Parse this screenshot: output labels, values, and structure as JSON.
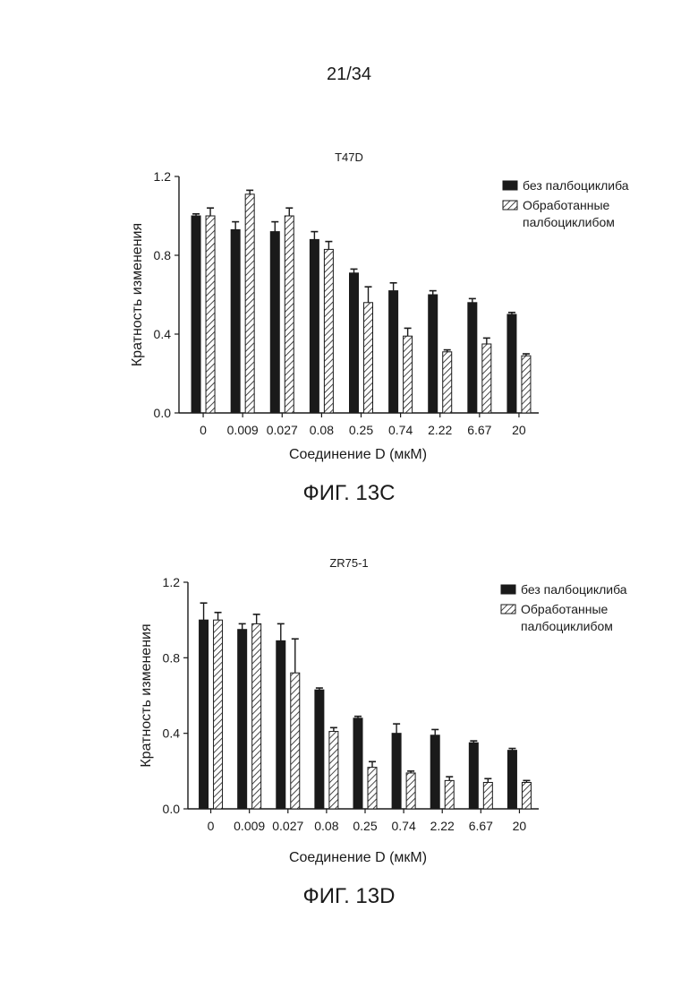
{
  "page_number": "21/34",
  "chart_data": [
    {
      "type": "bar",
      "title": "T47D",
      "xlabel": "Соединение D (мкМ)",
      "ylabel": "Кратность изменения",
      "ylim": [
        0,
        1.2
      ],
      "yticks": [
        "0.0",
        "0.4",
        "0.8",
        "1.2"
      ],
      "categories": [
        "0",
        "0.009",
        "0.027",
        "0.08",
        "0.25",
        "0.74",
        "2.22",
        "6.67",
        "20"
      ],
      "legend_position": "top-right",
      "series": [
        {
          "name": "без палбоциклиба",
          "style": "solid",
          "values": [
            1.0,
            0.93,
            0.92,
            0.88,
            0.71,
            0.62,
            0.6,
            0.56,
            0.5
          ],
          "errors": [
            0.01,
            0.04,
            0.05,
            0.04,
            0.02,
            0.04,
            0.02,
            0.02,
            0.01
          ]
        },
        {
          "name": "Обработанные палбоциклибом",
          "style": "hatched",
          "values": [
            1.0,
            1.11,
            1.0,
            0.83,
            0.56,
            0.39,
            0.31,
            0.35,
            0.29
          ],
          "errors": [
            0.04,
            0.02,
            0.04,
            0.04,
            0.08,
            0.04,
            0.01,
            0.03,
            0.01
          ]
        }
      ]
    },
    {
      "type": "bar",
      "title": "ZR75-1",
      "xlabel": "Соединение D (мкМ)",
      "ylabel": "Кратность изменения",
      "ylim": [
        0,
        1.2
      ],
      "yticks": [
        "0.0",
        "0.4",
        "0.8",
        "1.2"
      ],
      "categories": [
        "0",
        "0.009",
        "0.027",
        "0.08",
        "0.25",
        "0.74",
        "2.22",
        "6.67",
        "20"
      ],
      "legend_position": "top-right",
      "series": [
        {
          "name": "без палбоциклиба",
          "style": "solid",
          "values": [
            1.0,
            0.95,
            0.89,
            0.63,
            0.48,
            0.4,
            0.39,
            0.35,
            0.31
          ],
          "errors": [
            0.09,
            0.03,
            0.09,
            0.01,
            0.01,
            0.05,
            0.03,
            0.01,
            0.01
          ]
        },
        {
          "name": "Обработанные палбоциклибом",
          "style": "hatched",
          "values": [
            1.0,
            0.98,
            0.72,
            0.41,
            0.22,
            0.19,
            0.15,
            0.14,
            0.14
          ],
          "errors": [
            0.04,
            0.05,
            0.18,
            0.02,
            0.03,
            0.01,
            0.02,
            0.02,
            0.01
          ]
        }
      ]
    }
  ],
  "figure_captions": [
    "ФИГ. 13C",
    "ФИГ. 13D"
  ]
}
